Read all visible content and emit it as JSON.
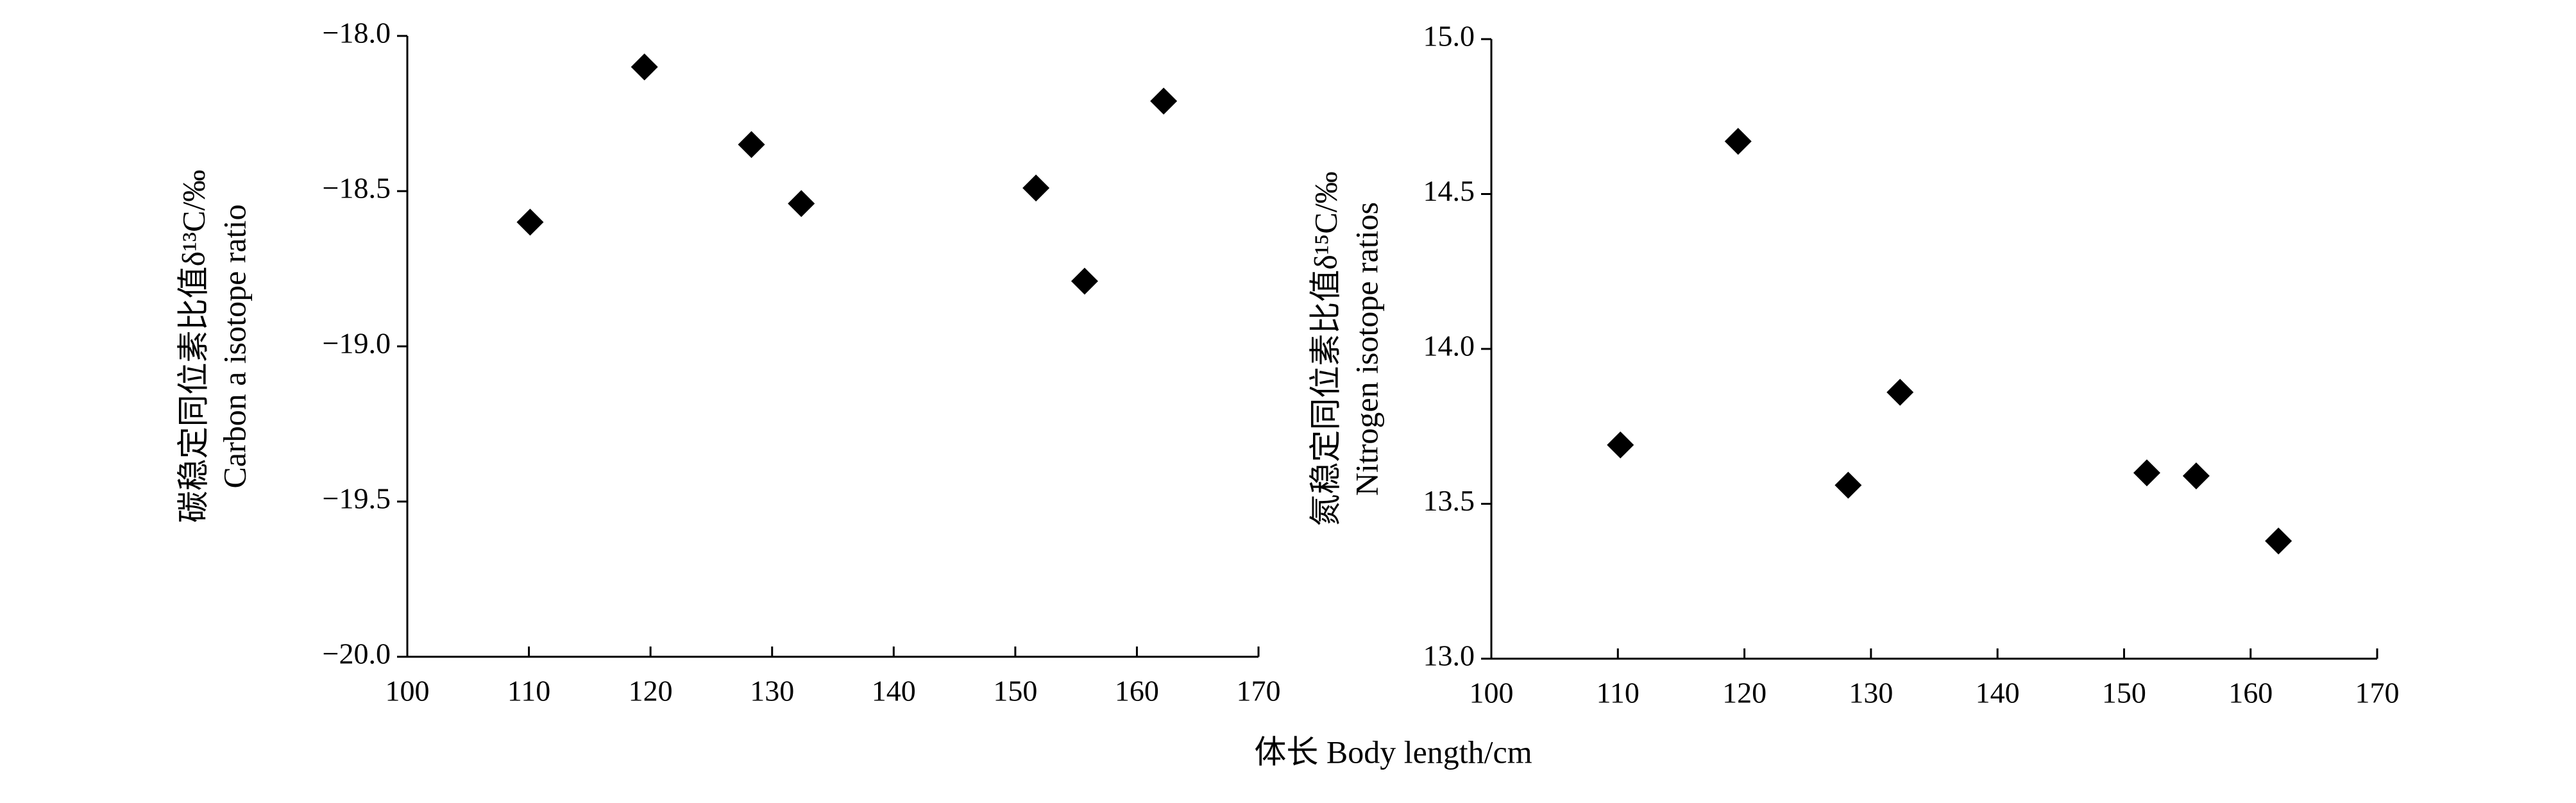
{
  "chart_data": [
    {
      "type": "scatter",
      "ylabel": [
        "碳稳定同位素比值δ¹³C/‰",
        "Carbon a isotope ratio"
      ],
      "x": [
        110.1,
        119.5,
        128.3,
        132.4,
        151.7,
        155.7,
        162.2
      ],
      "values": [
        -18.6,
        -18.1,
        -18.35,
        -18.54,
        -18.49,
        -18.79,
        -18.21
      ],
      "color": "#000000",
      "xlim": [
        100,
        170
      ],
      "xticks": [
        100,
        110,
        120,
        130,
        140,
        150,
        160,
        170
      ],
      "ylim": [
        -20,
        -18
      ],
      "yticks": [
        {
          "value": -20,
          "label": "−20.0"
        },
        {
          "value": -19.5,
          "label": "−19.5"
        },
        {
          "value": -19,
          "label": "−19.0"
        },
        {
          "value": -18.5,
          "label": "−18.5"
        },
        {
          "value": -18,
          "label": "−18.0"
        }
      ]
    },
    {
      "type": "scatter",
      "ylabel": [
        "氮稳定同位素比值δ¹⁵C/‰",
        "Nitrogen isotope ratios"
      ],
      "x": [
        110.2,
        119.5,
        128.2,
        132.3,
        151.8,
        155.7,
        162.2
      ],
      "values": [
        13.69,
        14.67,
        13.56,
        13.86,
        13.6,
        13.59,
        13.38
      ],
      "color": "#000000",
      "xlim": [
        100,
        170
      ],
      "xticks": [
        100,
        110,
        120,
        130,
        140,
        150,
        160,
        170
      ],
      "ylim": [
        13,
        15
      ],
      "yticks": [
        {
          "value": 13,
          "label": "13.0"
        },
        13.5,
        {
          "value": 14,
          "label": "14.0"
        },
        14.5,
        {
          "value": 15,
          "label": "15.0"
        }
      ]
    }
  ],
  "xlabel": "体长 Body length/cm"
}
